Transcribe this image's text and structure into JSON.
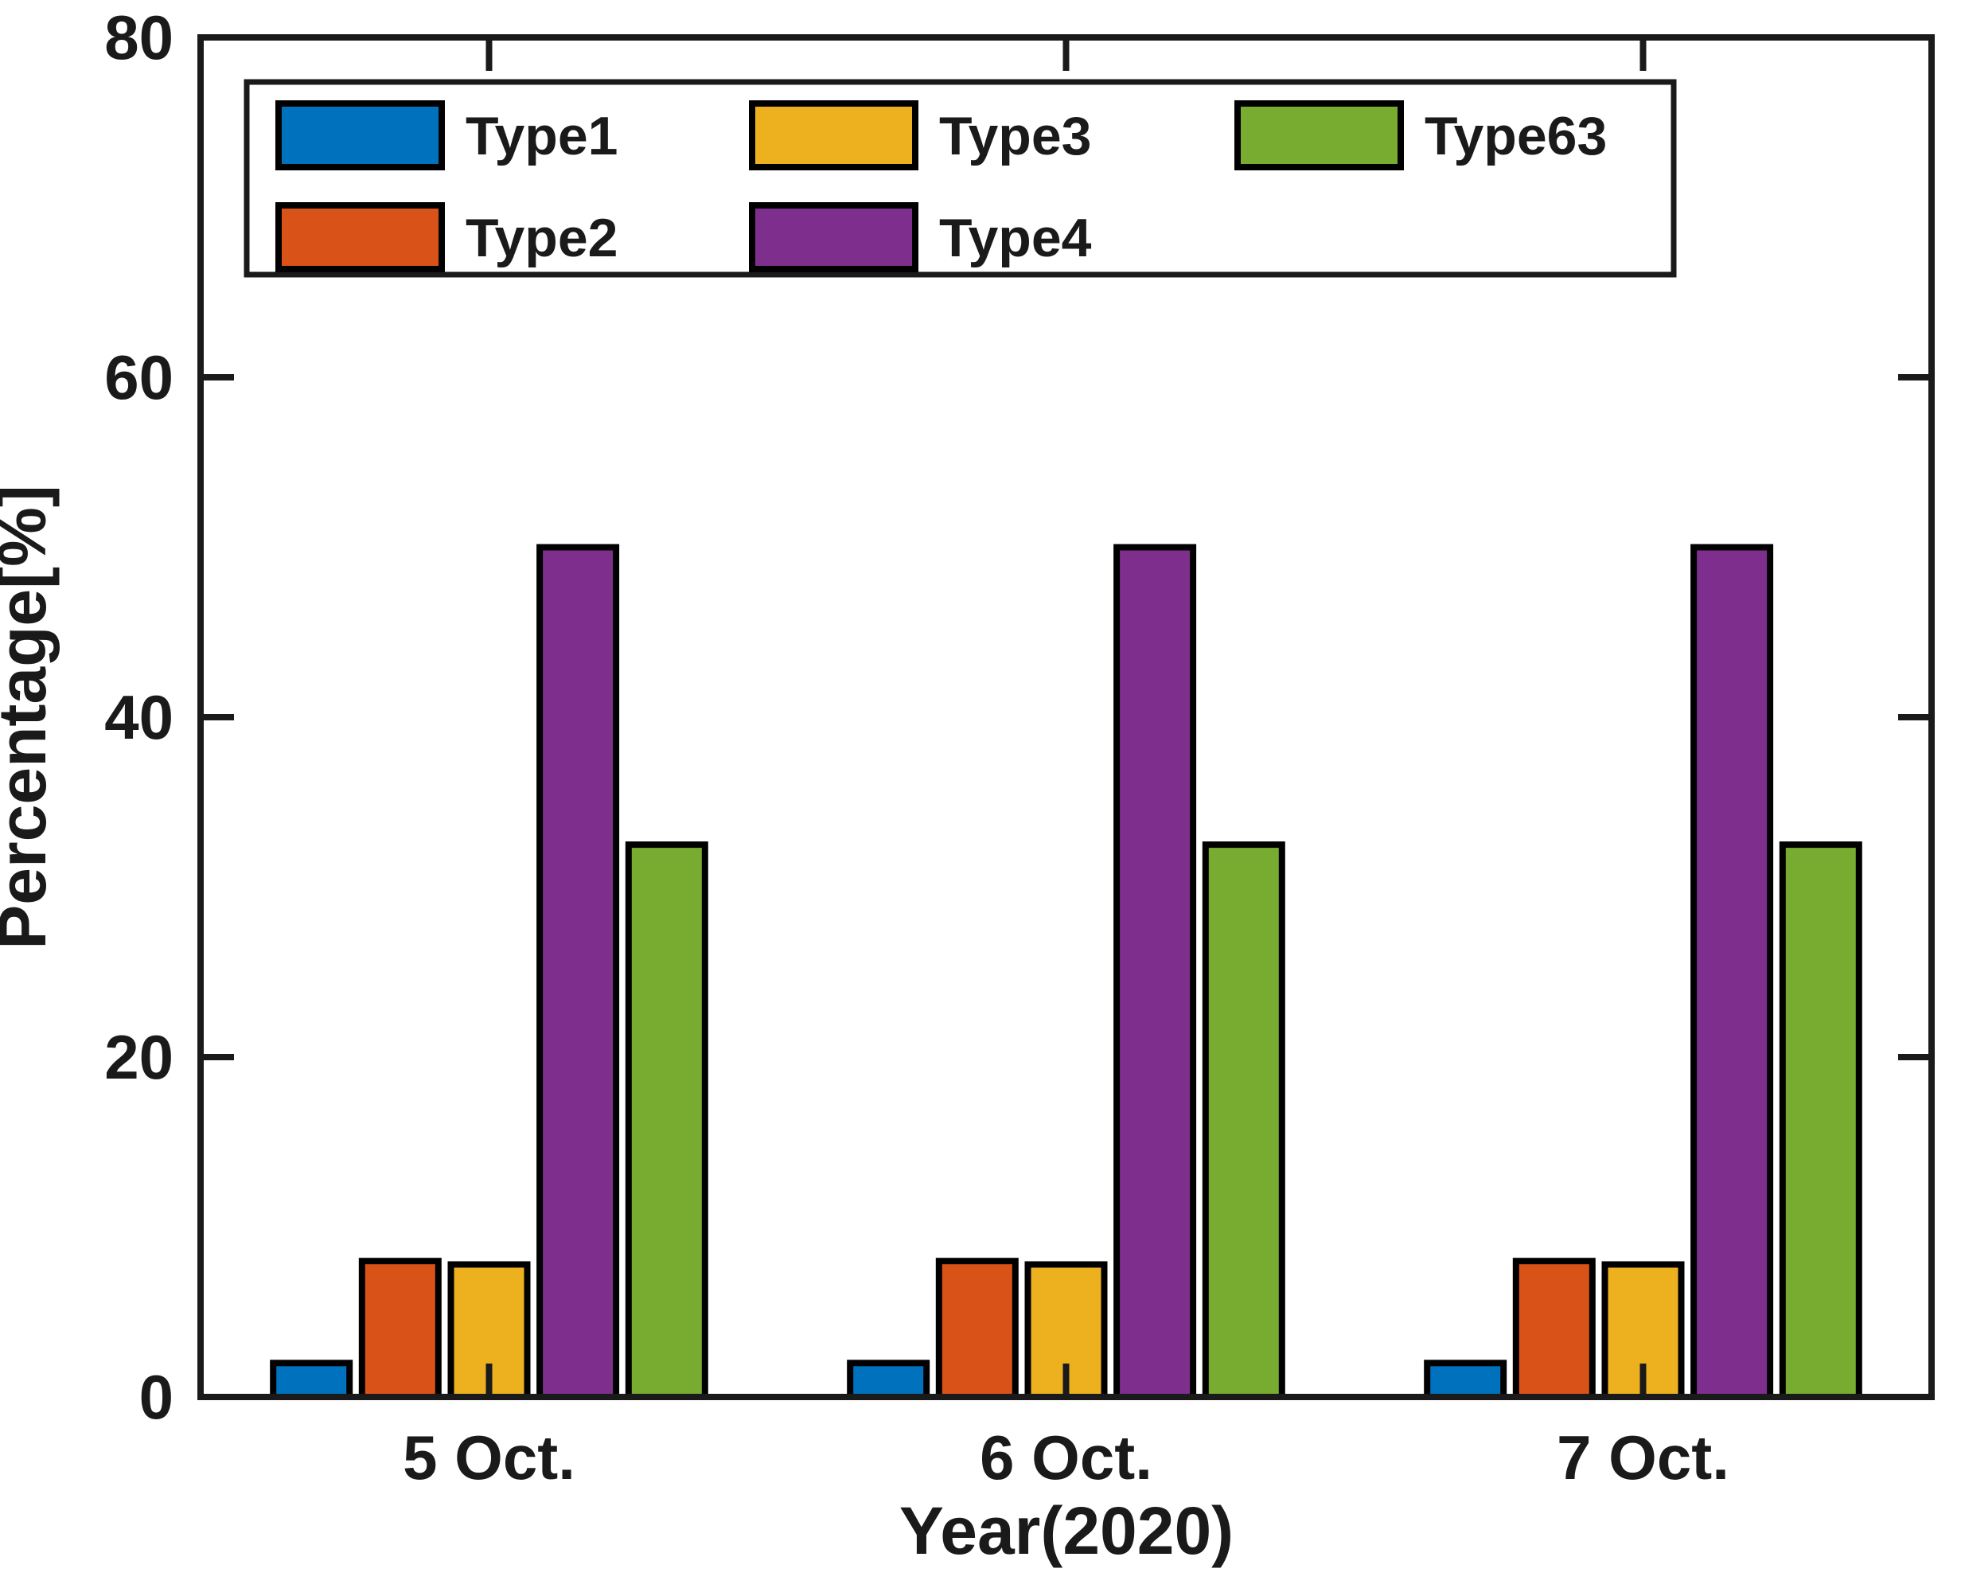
{
  "figure": {
    "background": "#ffffff",
    "axis_color": "#1a1a1a"
  },
  "chart_data": {
    "type": "bar",
    "title": "",
    "xlabel": "Year(2020)",
    "ylabel": "Percentage[%]",
    "ylim": [
      0,
      80
    ],
    "yticks": [
      0,
      20,
      40,
      60,
      80
    ],
    "ytick_labels": [
      "0",
      "20",
      "40",
      "60",
      "80"
    ],
    "categories": [
      "5 Oct.",
      "6 Oct.",
      "7 Oct."
    ],
    "series": [
      {
        "name": "Type1",
        "color": "#0072BD",
        "values": [
          2,
          2,
          2
        ]
      },
      {
        "name": "Type2",
        "color": "#D95319",
        "values": [
          8,
          8,
          8
        ]
      },
      {
        "name": "Type3",
        "color": "#EDB120",
        "values": [
          7.8,
          7.8,
          7.8
        ]
      },
      {
        "name": "Type4",
        "color": "#7E2F8E",
        "values": [
          50,
          50,
          50
        ]
      },
      {
        "name": "Type63",
        "color": "#77AC30",
        "values": [
          32.5,
          32.5,
          32.5
        ]
      }
    ],
    "bar_edge_color": "#000000",
    "grid": false,
    "legend": {
      "position": "top-left-inside",
      "columns": 3,
      "order": "column-major",
      "entries": [
        "Type1",
        "Type2",
        "Type3",
        "Type4",
        "Type63"
      ]
    }
  }
}
